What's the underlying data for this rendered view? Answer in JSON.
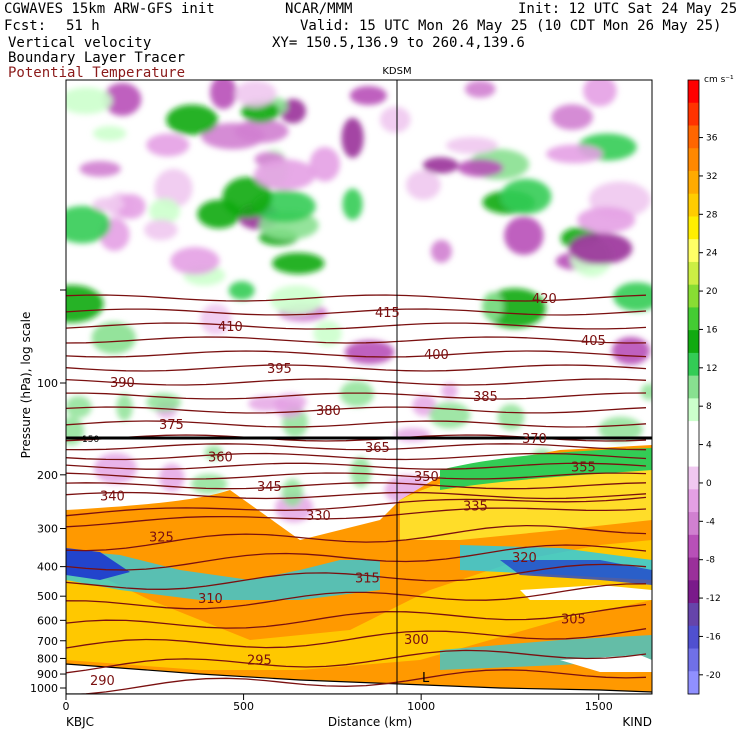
{
  "header": {
    "model": "CGWAVES 15km ARW-GFS init",
    "org": "NCAR/MMM",
    "init": "Init: 12 UTC Sat 24 May 25",
    "fcst_label": "Fcst:",
    "fcst_value": "51 h",
    "valid": "Valid: 15 UTC Mon 26 May 25 (10 CDT Mon 26 May 25)",
    "xy": "XY= 150.5,136.9 to 260.4,139.6",
    "field1": "Vertical velocity",
    "field2": "Boundary Layer Tracer",
    "field3": "Potential Temperature"
  },
  "plot": {
    "station_top": "KDSM",
    "left_station": "KBJC",
    "right_station": "KIND",
    "xlabel": "Distance (km)",
    "ylabel": "Pressure (hPa), log scale",
    "low_marker": "L",
    "trop_label": "150"
  },
  "colorbar": {
    "units": "cm s⁻¹",
    "ticks": [
      "36",
      "32",
      "28",
      "24",
      "20",
      "16",
      "12",
      "8",
      "4",
      "0",
      "-4",
      "-8",
      "-12",
      "-16",
      "-20"
    ],
    "colors": [
      "#ff0000",
      "#ff3300",
      "#ff6600",
      "#ff8800",
      "#ffaa00",
      "#ffcc00",
      "#ffee00",
      "#ffff66",
      "#ccee44",
      "#88dd33",
      "#44cc33",
      "#11aa11",
      "#33cc55",
      "#88e090",
      "#ccffcc",
      "#ffffff",
      "#ffffff",
      "#f0c8f0",
      "#e4a0e4",
      "#d080d0",
      "#b850b8",
      "#9a309a",
      "#7a1a8a",
      "#6644aa",
      "#5050d0",
      "#7070e8",
      "#9090ff"
    ]
  },
  "chart_data": {
    "type": "heatmap",
    "title": "Vertical velocity",
    "xlabel": "Distance (km)",
    "ylabel": "Pressure (hPa), log scale",
    "xlim": [
      0,
      1650
    ],
    "x_ticks": [
      "0",
      "500",
      "1000",
      "1500"
    ],
    "y_ticks": [
      "100",
      "200",
      "300",
      "400",
      "500",
      "600",
      "700",
      "800",
      "900",
      "1000"
    ],
    "y_scale": "log",
    "colorbar_range": [
      -20,
      36
    ],
    "series": [
      {
        "name": "Potential Temperature",
        "contour_labels": [
          "290",
          "295",
          "300",
          "305",
          "310",
          "315",
          "320",
          "325",
          "330",
          "335",
          "340",
          "345",
          "350",
          "355",
          "360",
          "365",
          "370",
          "375",
          "380",
          "385",
          "390",
          "395",
          "400",
          "405",
          "410",
          "415",
          "420"
        ]
      }
    ],
    "cross_section": {
      "from": "KBJC",
      "to": "KIND",
      "marker": "KDSM",
      "marker_distance_km": 940
    }
  }
}
